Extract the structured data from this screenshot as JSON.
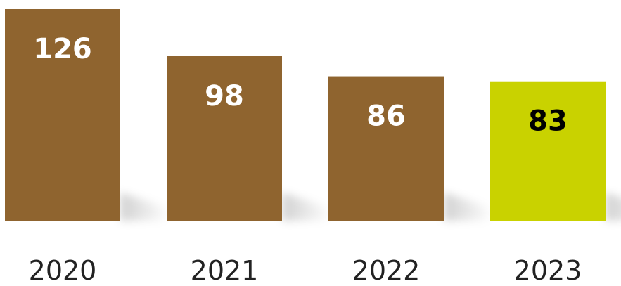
{
  "chart_data": {
    "type": "bar",
    "title": "",
    "xlabel": "",
    "ylabel": "",
    "categories": [
      "2020",
      "2021",
      "2022",
      "2023"
    ],
    "values": [
      126,
      98,
      86,
      83
    ],
    "value_labels": [
      "126",
      "98",
      "86",
      "83"
    ],
    "ylim": [
      0,
      126
    ],
    "grid": false,
    "legend": "none",
    "colors": {
      "default_bar": "#8f642f",
      "highlight_bar": "#c9d200",
      "default_label": "#ffffff",
      "highlight_label": "#000000"
    },
    "highlight_index": 3
  }
}
